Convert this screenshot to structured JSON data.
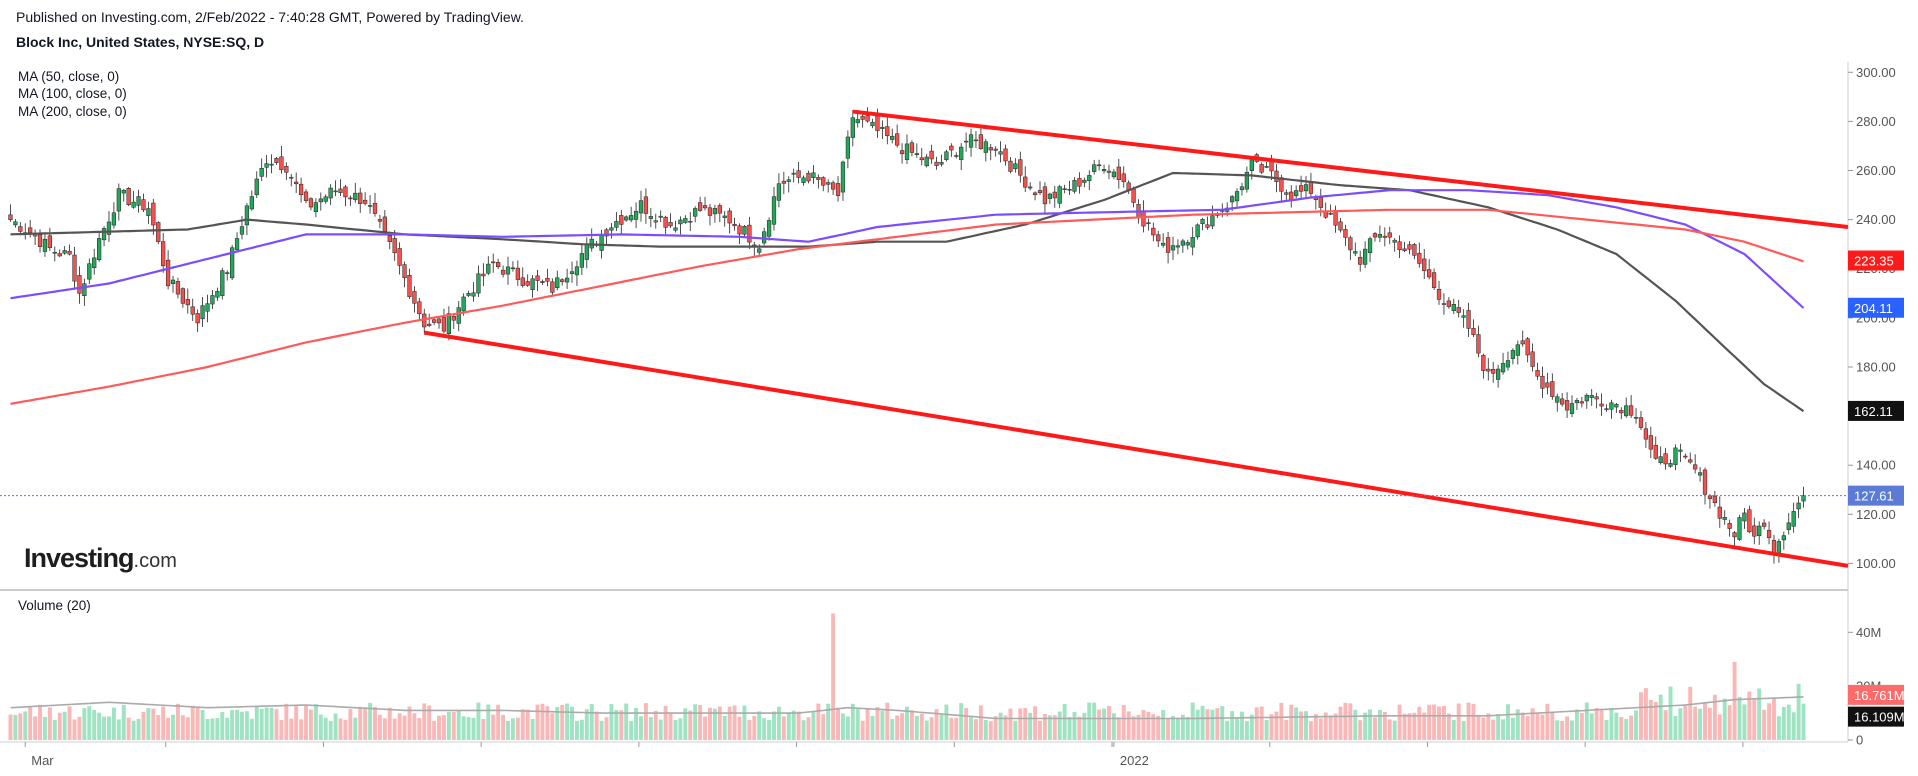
{
  "header": {
    "published": "Published on Investing.com, 2/Feb/2022 - 7:40:28 GMT, Powered by TradingView.",
    "symbol": "Block Inc, United States, NYSE:SQ, D"
  },
  "logo": {
    "brand": "Investing",
    "suffix": ".com"
  },
  "colors": {
    "up": "#26a65b",
    "down": "#ef5350",
    "vol_up": "#9fe3c3",
    "vol_down": "#f9b8b8",
    "ma50": "#555555",
    "ma100": "#7b4dff",
    "ma200": "#ff5a5a",
    "channel": "#ff1a1a",
    "last": "#5b7bd6",
    "vol_ma": "#aaaaaa"
  },
  "chart_data": {
    "type": "candlestick",
    "title": "Block Inc, United States, NYSE:SQ, D",
    "price_axis": {
      "min": 90,
      "max": 305,
      "ticks": [
        100,
        120,
        140,
        160,
        180,
        200,
        220,
        240,
        260,
        280,
        300
      ],
      "tick_labels": [
        "100.00",
        "120.00",
        "140.00",
        "160.00",
        "180.00",
        "200.00",
        "220.00",
        "240.00",
        "260.00",
        "280.00",
        "300.00"
      ]
    },
    "volume_axis": {
      "min": 0,
      "max": 52,
      "unit": "M",
      "ticks": [
        0,
        20,
        40
      ],
      "tick_labels": [
        "0",
        "20M",
        "40M"
      ]
    },
    "time_axis_labels": [
      {
        "label": "Mar",
        "bar": 3
      },
      {
        "label": "2022",
        "bar": 224
      }
    ],
    "indicators": [
      {
        "name": "MA (50, close, 0)",
        "color_key": "ma50",
        "last_value": 162.11,
        "badge": "162.11",
        "points": [
          [
            0,
            234
          ],
          [
            18,
            235
          ],
          [
            36,
            236
          ],
          [
            48,
            240
          ],
          [
            60,
            238
          ],
          [
            80,
            234
          ],
          [
            100,
            232
          ],
          [
            116,
            230
          ],
          [
            132,
            229
          ],
          [
            146,
            229
          ],
          [
            162,
            229
          ],
          [
            176,
            231
          ],
          [
            190,
            231
          ],
          [
            206,
            238
          ],
          [
            222,
            248
          ],
          [
            236,
            259
          ],
          [
            252,
            258
          ],
          [
            270,
            254
          ],
          [
            284,
            252
          ],
          [
            300,
            245
          ],
          [
            314,
            236
          ],
          [
            326,
            226
          ],
          [
            338,
            207
          ],
          [
            348,
            188
          ],
          [
            356,
            173
          ],
          [
            364,
            162
          ]
        ]
      },
      {
        "name": "MA (100, close, 0)",
        "color_key": "ma100",
        "last_value": 204.11,
        "badge": "204.11",
        "points": [
          [
            0,
            208
          ],
          [
            20,
            214
          ],
          [
            40,
            224
          ],
          [
            60,
            234
          ],
          [
            80,
            234
          ],
          [
            100,
            233
          ],
          [
            124,
            234
          ],
          [
            148,
            233
          ],
          [
            162,
            231
          ],
          [
            176,
            237
          ],
          [
            200,
            242
          ],
          [
            222,
            243
          ],
          [
            246,
            244
          ],
          [
            264,
            249
          ],
          [
            280,
            252
          ],
          [
            296,
            252
          ],
          [
            312,
            250
          ],
          [
            326,
            245
          ],
          [
            340,
            238
          ],
          [
            352,
            226
          ],
          [
            364,
            204
          ]
        ]
      },
      {
        "name": "MA (200, close, 0)",
        "color_key": "ma200",
        "last_value": 223.35,
        "badge": "223.35",
        "points": [
          [
            0,
            165
          ],
          [
            20,
            172
          ],
          [
            40,
            180
          ],
          [
            60,
            190
          ],
          [
            80,
            198
          ],
          [
            100,
            205
          ],
          [
            120,
            213
          ],
          [
            140,
            221
          ],
          [
            160,
            228
          ],
          [
            180,
            233
          ],
          [
            200,
            238
          ],
          [
            220,
            240
          ],
          [
            240,
            242
          ],
          [
            260,
            243
          ],
          [
            280,
            244
          ],
          [
            300,
            244
          ],
          [
            320,
            240
          ],
          [
            340,
            236
          ],
          [
            352,
            231
          ],
          [
            364,
            223
          ]
        ]
      }
    ],
    "volume_indicator": {
      "name": "Volume (20)",
      "color_key": "vol_ma",
      "values_badges": [
        "16.761M",
        "16.109M"
      ],
      "points": [
        [
          0,
          12
        ],
        [
          20,
          14
        ],
        [
          40,
          12
        ],
        [
          60,
          13
        ],
        [
          80,
          11
        ],
        [
          100,
          11
        ],
        [
          120,
          10
        ],
        [
          140,
          10
        ],
        [
          160,
          10
        ],
        [
          170,
          12
        ],
        [
          180,
          11
        ],
        [
          200,
          8
        ],
        [
          240,
          8
        ],
        [
          280,
          9
        ],
        [
          300,
          9
        ],
        [
          320,
          11
        ],
        [
          340,
          13
        ],
        [
          350,
          15
        ],
        [
          364,
          16
        ]
      ]
    },
    "channel_lines": [
      {
        "p1": [
          171,
          284
        ],
        "p2": [
          370,
          237
        ]
      },
      {
        "p1": [
          84,
          194
        ],
        "p2": [
          370,
          99
        ]
      }
    ],
    "last_price": {
      "value": 127.61,
      "label": "127.61"
    },
    "price_anchors": [
      [
        0,
        240
      ],
      [
        4,
        235
      ],
      [
        8,
        228
      ],
      [
        12,
        225
      ],
      [
        14,
        210
      ],
      [
        18,
        232
      ],
      [
        22,
        250
      ],
      [
        28,
        245
      ],
      [
        32,
        215
      ],
      [
        38,
        200
      ],
      [
        44,
        220
      ],
      [
        48,
        245
      ],
      [
        52,
        265
      ],
      [
        56,
        262
      ],
      [
        60,
        245
      ],
      [
        66,
        252
      ],
      [
        72,
        248
      ],
      [
        78,
        225
      ],
      [
        84,
        198
      ],
      [
        88,
        196
      ],
      [
        92,
        208
      ],
      [
        98,
        222
      ],
      [
        104,
        216
      ],
      [
        110,
        212
      ],
      [
        116,
        226
      ],
      [
        122,
        238
      ],
      [
        128,
        246
      ],
      [
        134,
        238
      ],
      [
        140,
        244
      ],
      [
        146,
        240
      ],
      [
        152,
        230
      ],
      [
        156,
        255
      ],
      [
        162,
        258
      ],
      [
        168,
        250
      ],
      [
        171,
        282
      ],
      [
        176,
        276
      ],
      [
        182,
        268
      ],
      [
        188,
        262
      ],
      [
        194,
        272
      ],
      [
        200,
        270
      ],
      [
        204,
        260
      ],
      [
        210,
        248
      ],
      [
        216,
        254
      ],
      [
        222,
        263
      ],
      [
        226,
        256
      ],
      [
        230,
        240
      ],
      [
        234,
        228
      ],
      [
        238,
        232
      ],
      [
        242,
        238
      ],
      [
        248,
        248
      ],
      [
        252,
        262
      ],
      [
        256,
        258
      ],
      [
        260,
        250
      ],
      [
        264,
        252
      ],
      [
        270,
        234
      ],
      [
        274,
        224
      ],
      [
        278,
        235
      ],
      [
        282,
        230
      ],
      [
        286,
        222
      ],
      [
        290,
        210
      ],
      [
        296,
        196
      ],
      [
        300,
        176
      ],
      [
        306,
        190
      ],
      [
        310,
        176
      ],
      [
        316,
        164
      ],
      [
        320,
        168
      ],
      [
        326,
        165
      ],
      [
        330,
        162
      ],
      [
        334,
        140
      ],
      [
        338,
        145
      ],
      [
        342,
        138
      ],
      [
        346,
        124
      ],
      [
        350,
        112
      ],
      [
        352,
        120
      ],
      [
        354,
        110
      ],
      [
        356,
        118
      ],
      [
        358,
        106
      ],
      [
        361,
        118
      ],
      [
        364,
        127.61
      ]
    ],
    "volume_spikes": [
      [
        167,
        47
      ],
      [
        226,
        13
      ],
      [
        344,
        14
      ],
      [
        350,
        29
      ],
      [
        353,
        18
      ],
      [
        354,
        15
      ]
    ]
  }
}
